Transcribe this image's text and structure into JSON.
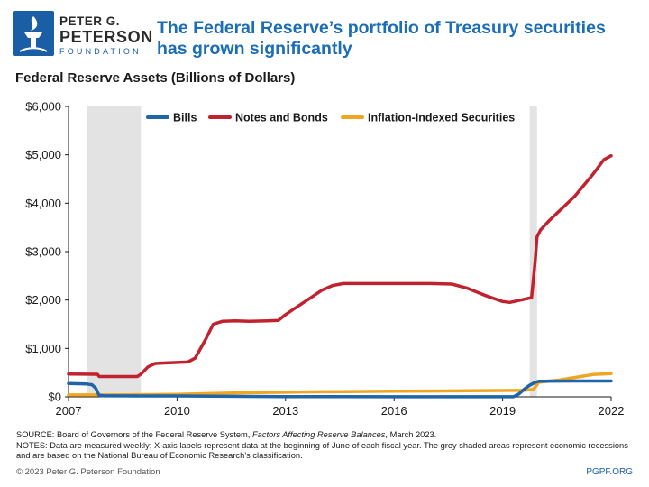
{
  "header": {
    "logo_line1": "PETER G.",
    "logo_line2": "PETERSON",
    "logo_line3": "FOUNDATION",
    "headline": "The Federal Reserve’s portfolio of Treasury securities has grown significantly",
    "subtitle": "Federal Reserve Assets (Billions of Dollars)"
  },
  "footer": {
    "source_prefix": "SOURCE: Board of Governors of the Federal Reserve System, ",
    "source_italic": "Factors Affecting Reserve Balances",
    "source_suffix": ", March 2023.",
    "notes": "NOTES: Data are measured weekly; X-axis labels represent data at the beginning of June of each fiscal year. The grey shaded areas represent economic recessions and are based on the National Bureau of Economic Research’s classification.",
    "copyright": "© 2023 Peter G. Peterson Foundation",
    "website": "PGPF.ORG"
  },
  "colors": {
    "title": "#1b6db4",
    "bills": "#1f65a8",
    "notes_bonds": "#c0232f",
    "tips": "#f0a623",
    "recession": "#e3e3e3"
  },
  "chart_data": {
    "type": "line",
    "title": "Federal Reserve Assets (Billions of Dollars)",
    "xlabel": "",
    "ylabel": "",
    "xlim": [
      2007,
      2022
    ],
    "ylim": [
      0,
      6000
    ],
    "x_ticks": [
      2007,
      2010,
      2013,
      2016,
      2019,
      2022
    ],
    "x_tick_labels": [
      "2007",
      "2010",
      "2013",
      "2016",
      "2019",
      "2022"
    ],
    "y_ticks": [
      0,
      1000,
      2000,
      3000,
      4000,
      5000,
      6000
    ],
    "y_tick_labels": [
      "$0",
      "$1,000",
      "$2,000",
      "$3,000",
      "$4,000",
      "$5,000",
      "$6,000"
    ],
    "grid": false,
    "legend_position": "top",
    "recessions": [
      [
        2007.5,
        2009.0
      ],
      [
        2019.75,
        2019.95
      ]
    ],
    "series": [
      {
        "name": "Bills",
        "color": "#1f65a8",
        "points": [
          [
            2007.0,
            275
          ],
          [
            2007.5,
            265
          ],
          [
            2007.65,
            250
          ],
          [
            2007.75,
            180
          ],
          [
            2007.8,
            100
          ],
          [
            2007.85,
            30
          ],
          [
            2008.0,
            20
          ],
          [
            2009.0,
            18
          ],
          [
            2010.0,
            18
          ],
          [
            2013.0,
            5
          ],
          [
            2016.0,
            2
          ],
          [
            2019.0,
            2
          ],
          [
            2019.3,
            2
          ],
          [
            2019.45,
            60
          ],
          [
            2019.6,
            160
          ],
          [
            2019.75,
            240
          ],
          [
            2019.9,
            300
          ],
          [
            2020.0,
            320
          ],
          [
            2021.0,
            326
          ],
          [
            2022.0,
            326
          ]
        ]
      },
      {
        "name": "Notes and Bonds",
        "color": "#c0232f",
        "points": [
          [
            2007.0,
            470
          ],
          [
            2007.8,
            465
          ],
          [
            2007.85,
            420
          ],
          [
            2008.3,
            420
          ],
          [
            2008.9,
            420
          ],
          [
            2009.0,
            470
          ],
          [
            2009.2,
            620
          ],
          [
            2009.4,
            690
          ],
          [
            2009.7,
            700
          ],
          [
            2010.0,
            710
          ],
          [
            2010.3,
            720
          ],
          [
            2010.5,
            800
          ],
          [
            2010.8,
            1200
          ],
          [
            2011.0,
            1500
          ],
          [
            2011.25,
            1560
          ],
          [
            2011.6,
            1570
          ],
          [
            2012.0,
            1560
          ],
          [
            2012.5,
            1570
          ],
          [
            2012.8,
            1580
          ],
          [
            2013.0,
            1700
          ],
          [
            2013.3,
            1850
          ],
          [
            2013.6,
            2000
          ],
          [
            2014.0,
            2200
          ],
          [
            2014.3,
            2300
          ],
          [
            2014.6,
            2340
          ],
          [
            2015.0,
            2340
          ],
          [
            2016.0,
            2340
          ],
          [
            2017.0,
            2340
          ],
          [
            2017.6,
            2330
          ],
          [
            2018.0,
            2250
          ],
          [
            2018.5,
            2100
          ],
          [
            2019.0,
            1970
          ],
          [
            2019.2,
            1950
          ],
          [
            2019.5,
            2000
          ],
          [
            2019.8,
            2050
          ],
          [
            2019.9,
            2800
          ],
          [
            2019.95,
            3300
          ],
          [
            2020.05,
            3450
          ],
          [
            2020.3,
            3650
          ],
          [
            2021.0,
            4150
          ],
          [
            2021.5,
            4600
          ],
          [
            2021.8,
            4900
          ],
          [
            2022.0,
            4980
          ]
        ]
      },
      {
        "name": "Inflation-Indexed Securities",
        "color": "#f0a623",
        "points": [
          [
            2007.0,
            40
          ],
          [
            2008.0,
            40
          ],
          [
            2009.0,
            45
          ],
          [
            2010.0,
            50
          ],
          [
            2011.0,
            70
          ],
          [
            2012.0,
            85
          ],
          [
            2013.0,
            95
          ],
          [
            2014.0,
            105
          ],
          [
            2015.0,
            110
          ],
          [
            2016.0,
            115
          ],
          [
            2017.0,
            120
          ],
          [
            2018.0,
            125
          ],
          [
            2019.0,
            130
          ],
          [
            2019.6,
            135
          ],
          [
            2019.85,
            150
          ],
          [
            2020.0,
            300
          ],
          [
            2020.5,
            340
          ],
          [
            2021.0,
            400
          ],
          [
            2021.5,
            460
          ],
          [
            2022.0,
            480
          ]
        ]
      }
    ]
  }
}
